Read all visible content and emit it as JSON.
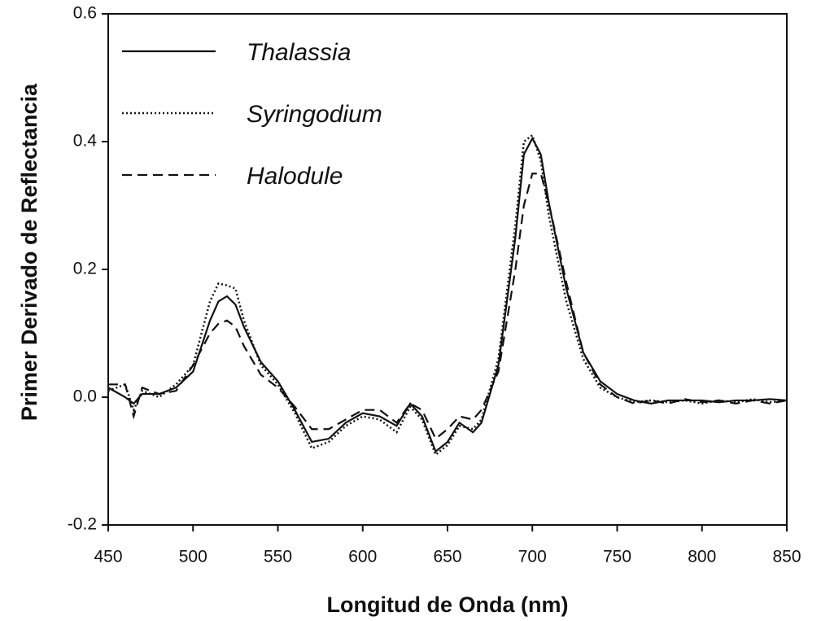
{
  "chart_data": {
    "type": "line",
    "x_label": "Longitud de Onda (nm)",
    "y_label": "Primer Derivado de Reflectancia",
    "x": [
      450,
      460,
      465,
      470,
      480,
      490,
      500,
      510,
      515,
      520,
      525,
      530,
      540,
      550,
      560,
      570,
      580,
      590,
      600,
      610,
      620,
      628,
      635,
      643,
      650,
      657,
      665,
      670,
      680,
      690,
      695,
      700,
      705,
      710,
      720,
      730,
      740,
      750,
      760,
      770,
      780,
      790,
      800,
      810,
      820,
      830,
      840,
      850
    ],
    "series": [
      {
        "name": "Thalassia",
        "color": "#111111",
        "style": "solid",
        "values": [
          0.015,
          0.0,
          -0.01,
          0.005,
          0.005,
          0.015,
          0.04,
          0.12,
          0.15,
          0.158,
          0.145,
          0.11,
          0.055,
          0.025,
          -0.02,
          -0.07,
          -0.065,
          -0.04,
          -0.025,
          -0.03,
          -0.045,
          -0.01,
          -0.03,
          -0.085,
          -0.07,
          -0.04,
          -0.055,
          -0.04,
          0.05,
          0.25,
          0.38,
          0.405,
          0.38,
          0.3,
          0.17,
          0.07,
          0.025,
          0.005,
          -0.005,
          -0.01,
          -0.005,
          -0.005,
          -0.005,
          -0.008,
          -0.005,
          -0.005,
          -0.003,
          -0.005
        ]
      },
      {
        "name": "Syringodium",
        "color": "#111111",
        "style": "dotted",
        "values": [
          0.01,
          0.02,
          -0.02,
          0.01,
          0.0,
          0.02,
          0.05,
          0.15,
          0.178,
          0.175,
          0.17,
          0.12,
          0.05,
          0.02,
          -0.025,
          -0.08,
          -0.07,
          -0.045,
          -0.03,
          -0.035,
          -0.055,
          -0.015,
          -0.035,
          -0.09,
          -0.075,
          -0.045,
          -0.05,
          -0.035,
          0.06,
          0.27,
          0.4,
          0.41,
          0.37,
          0.28,
          0.15,
          0.06,
          0.015,
          0.0,
          -0.008,
          -0.005,
          -0.008,
          -0.005,
          -0.01,
          -0.005,
          -0.008,
          -0.003,
          -0.008,
          -0.005
        ]
      },
      {
        "name": "Halodule",
        "color": "#111111",
        "style": "dashed",
        "values": [
          0.02,
          0.02,
          -0.03,
          0.015,
          0.005,
          0.01,
          0.05,
          0.1,
          0.115,
          0.12,
          0.11,
          0.08,
          0.035,
          0.015,
          -0.015,
          -0.05,
          -0.05,
          -0.035,
          -0.02,
          -0.02,
          -0.04,
          -0.01,
          -0.02,
          -0.065,
          -0.05,
          -0.03,
          -0.035,
          -0.02,
          0.04,
          0.2,
          0.3,
          0.35,
          0.35,
          0.3,
          0.18,
          0.07,
          0.02,
          0.0,
          -0.01,
          -0.005,
          -0.01,
          -0.003,
          -0.008,
          -0.005,
          -0.01,
          -0.005,
          -0.01,
          -0.005
        ]
      }
    ],
    "xlim": [
      450,
      850
    ],
    "xticks": [
      450,
      500,
      550,
      600,
      650,
      700,
      750,
      800,
      850
    ],
    "ylim": [
      -0.2,
      0.6
    ],
    "yticks": [
      -0.2,
      {
        "value": 0,
        "label": "0.0"
      },
      0.2,
      0.4,
      0.6
    ],
    "grid": false,
    "legend": "upper left"
  }
}
